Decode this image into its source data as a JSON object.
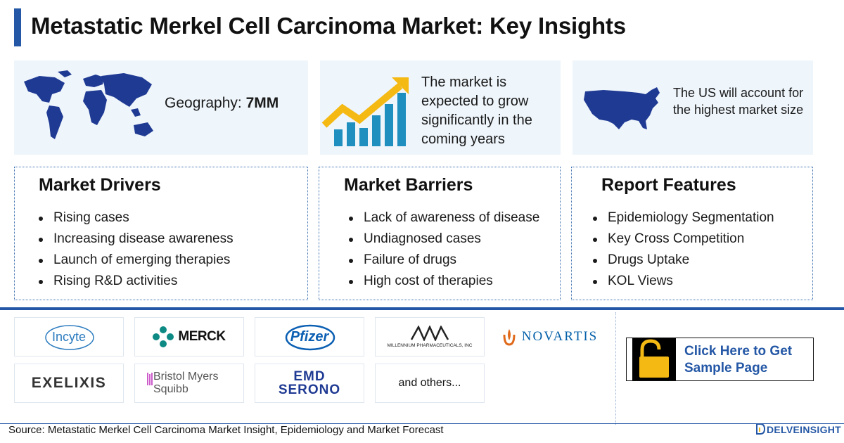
{
  "header": {
    "title": "Metastatic Merkel Cell Carcinoma Market: Key Insights"
  },
  "insights": {
    "geography_label": "Geography: ",
    "geography_value": "7MM",
    "growth_text": "The market is expected to grow significantly in the coming years",
    "us_text": "The US will account for the highest market size"
  },
  "sections": {
    "drivers": {
      "title": "Market Drivers",
      "items": [
        "Rising cases",
        "Increasing disease awareness",
        "Launch of emerging therapies",
        "Rising R&D activities"
      ]
    },
    "barriers": {
      "title": "Market Barriers",
      "items": [
        "Lack of awareness of disease",
        "Undiagnosed cases",
        "Failure of drugs",
        "High cost of therapies"
      ]
    },
    "features": {
      "title": "Report Features",
      "items": [
        "Epidemiology Segmentation",
        "Key Cross Competition",
        "Drugs Uptake",
        "KOL Views"
      ]
    }
  },
  "companies": {
    "incyte": "Incyte",
    "merck": "MERCK",
    "pfizer": "Pfizer",
    "millennium": "MILLENNIUM PHARMACEUTICALS, INC",
    "novartis": "NOVARTIS",
    "exelixis": "EXELIXIS",
    "bms_line1": "Bristol Myers",
    "bms_line2": "Squibb",
    "emd_line1": "EMD",
    "emd_line2": "SERONO",
    "others": "and others..."
  },
  "cta": {
    "label": "Click Here to Get Sample Page"
  },
  "footer": {
    "source": "Source: Metastatic Merkel Cell Carcinoma Market Insight, Epidemiology and Market Forecast",
    "brand": "DELVEINSIGHT"
  },
  "colors": {
    "accent": "#2457a5",
    "card_bg": "#eef5fb",
    "teal": "#1f8fc0",
    "gold": "#f5b914"
  }
}
